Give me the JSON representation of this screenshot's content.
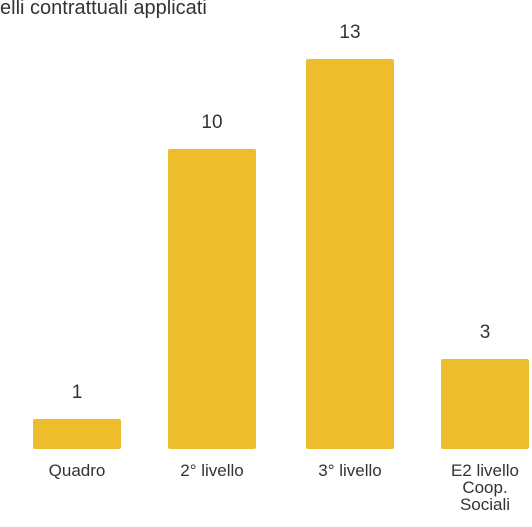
{
  "chart_data": {
    "type": "bar",
    "title": "elli contrattuali applicati",
    "categories": [
      [
        "Quadro"
      ],
      [
        "2° livello"
      ],
      [
        "3° livello"
      ],
      [
        "E2 livello",
        "Coop.",
        "Sociali"
      ]
    ],
    "values": [
      1,
      10,
      13,
      3
    ],
    "data_labels": [
      "1",
      "10",
      "13",
      "3"
    ],
    "bar_color": "#EEBD2C",
    "ylim": [
      0,
      13
    ],
    "grid": false,
    "legend": "none"
  }
}
